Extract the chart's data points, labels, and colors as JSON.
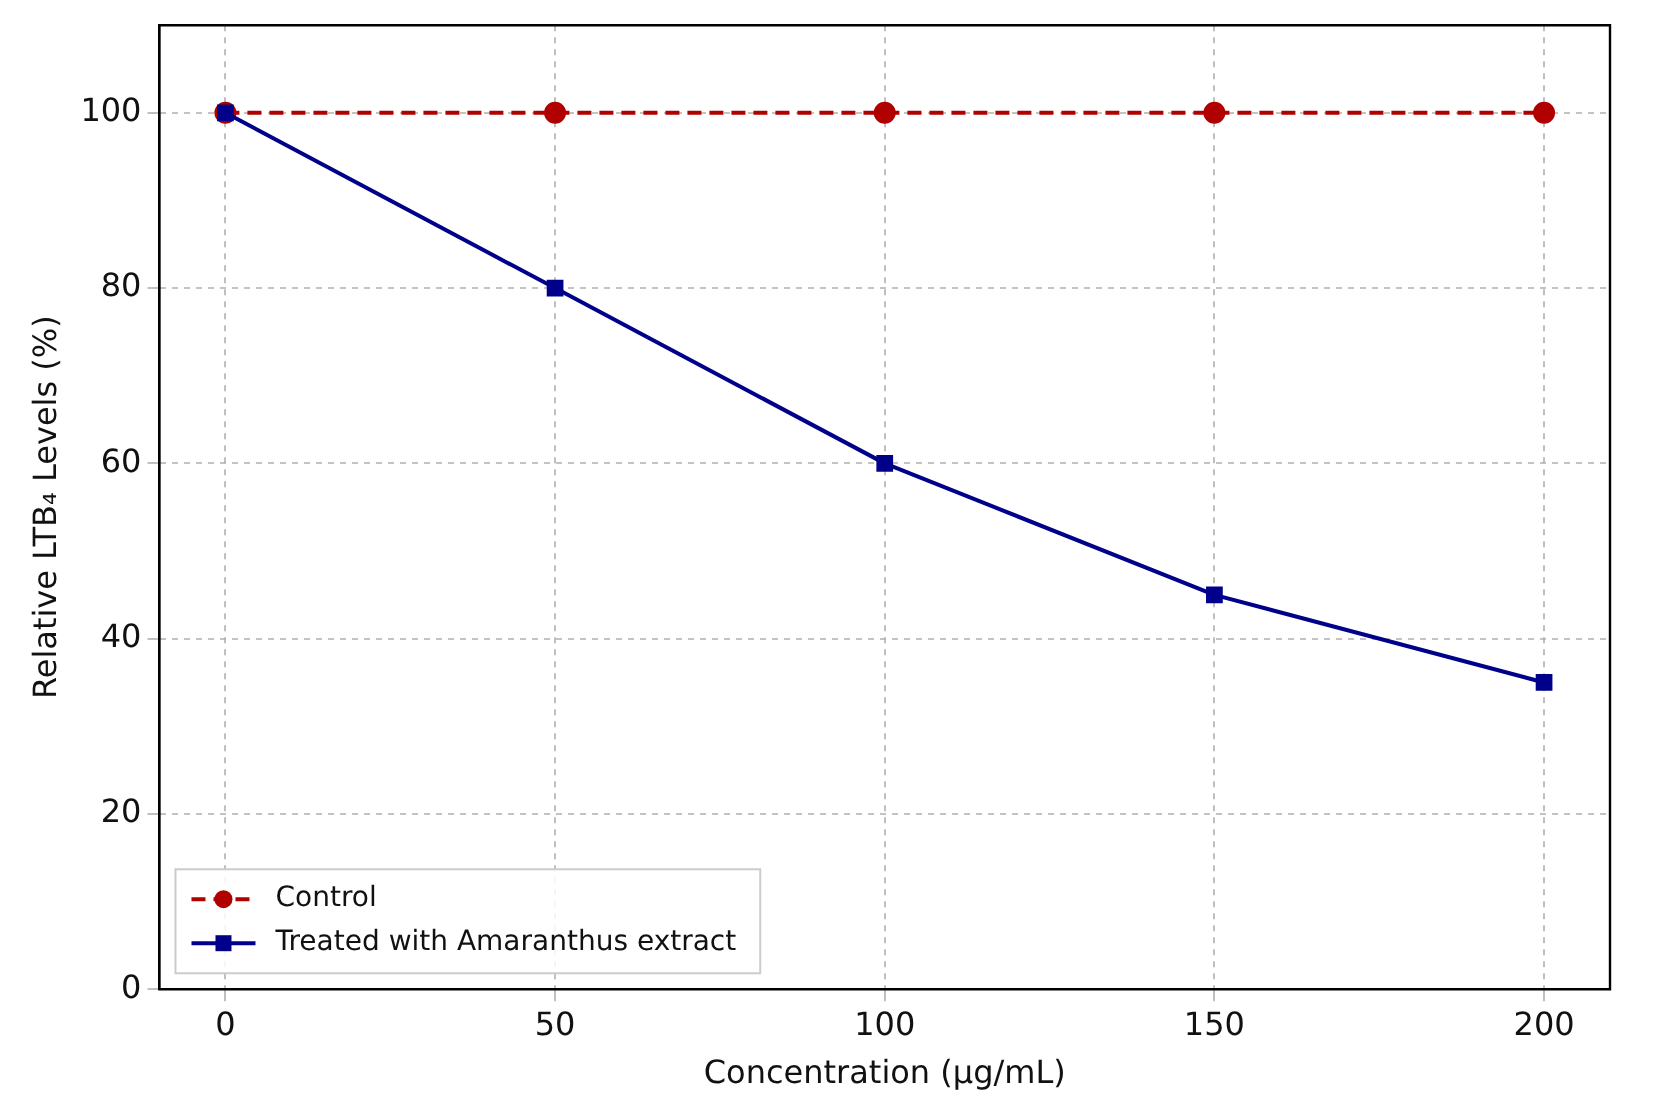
{
  "chart_data": {
    "type": "line",
    "xlabel": "Concentration (µg/mL)",
    "ylabel": "Relative LTB₄ Levels (%)",
    "x": [
      0,
      50,
      100,
      150,
      200
    ],
    "series": [
      {
        "name": "Control",
        "color": "#b00000",
        "values": [
          100,
          100,
          100,
          100,
          100
        ],
        "marker": "circle",
        "line_style": "dashed"
      },
      {
        "name": "Treated with Amaranthus extract",
        "color": "#00008b",
        "values": [
          100,
          80,
          60,
          45,
          35
        ],
        "marker": "square",
        "line_style": "solid"
      }
    ],
    "xlim": [
      -10,
      210
    ],
    "xticks": [
      0,
      50,
      100,
      150,
      200
    ],
    "ylim": [
      0,
      110
    ],
    "yticks": [
      0,
      20,
      40,
      60,
      80,
      100
    ],
    "grid": true,
    "legend": "bottom left"
  }
}
